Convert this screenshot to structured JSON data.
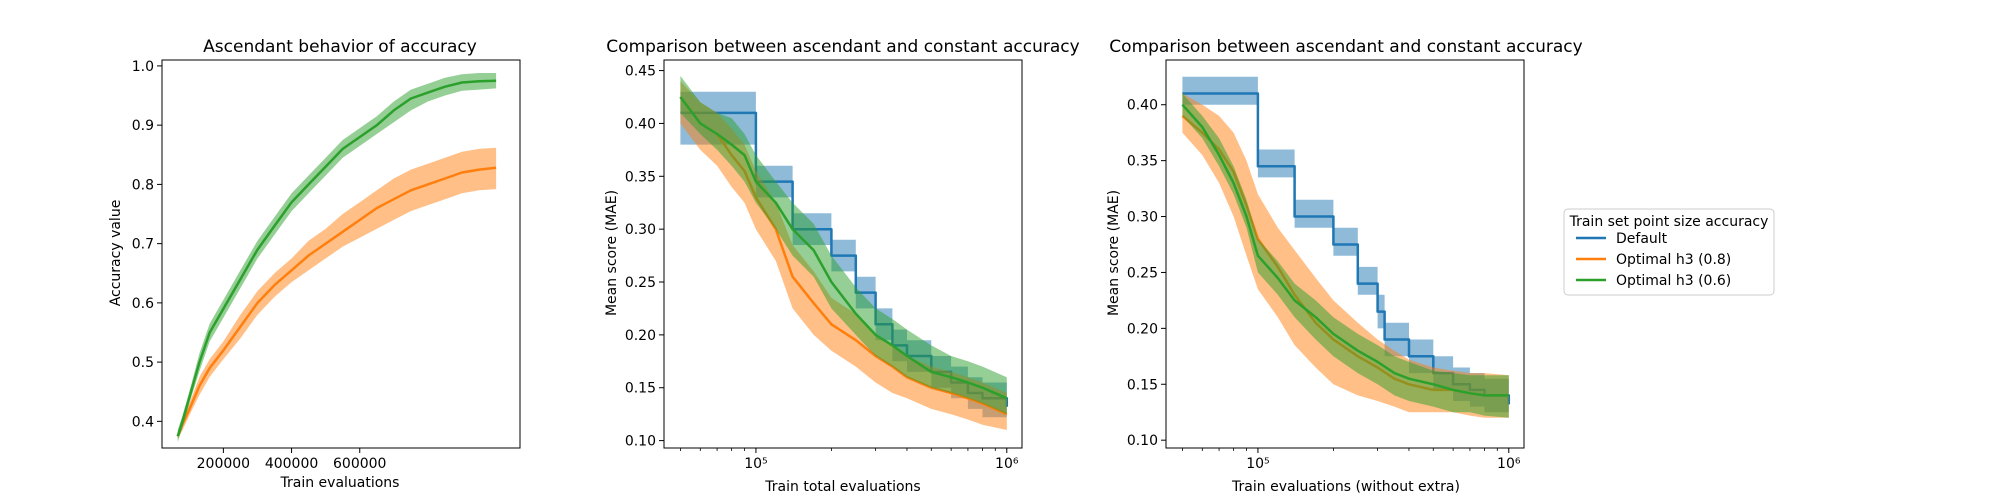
{
  "colors": {
    "Default": "#1f77b4",
    "Optimal h3 (0.8)": "#ff7f0e",
    "Optimal h3 (0.6)": "#2ca02c"
  },
  "legend": {
    "title": "Train set point size accuracy",
    "entries": [
      {
        "name": "Default",
        "color": "#1f77b4"
      },
      {
        "name": "Optimal h3 (0.8)",
        "color": "#ff7f0e"
      },
      {
        "name": "Optimal h3 (0.6)",
        "color": "#2ca02c"
      }
    ]
  },
  "chart_data": [
    {
      "type": "line",
      "title": "Ascendant behavior of accuracy",
      "xlabel": "Train evaluations",
      "ylabel": "Accuracy value",
      "xlim": [
        20000,
        1070000
      ],
      "ylim": [
        0.355,
        1.01
      ],
      "xscale": "linear",
      "xticks": [
        200000,
        400000,
        600000
      ],
      "xtick_labels": [
        "200000",
        "400000",
        "600000"
      ],
      "yticks": [
        0.4,
        0.5,
        0.6,
        0.7,
        0.8,
        0.9,
        1.0
      ],
      "ytick_labels": [
        "0.4",
        "0.5",
        "0.6",
        "0.7",
        "0.8",
        "0.9",
        "1.0"
      ],
      "grid": false,
      "series": [
        {
          "name": "Optimal h3 (0.8)",
          "x": [
            66000,
            80000,
            100000,
            130000,
            160000,
            200000,
            250000,
            300000,
            350000,
            400000,
            450000,
            500000,
            550000,
            600000,
            650000,
            700000,
            750000,
            800000,
            850000,
            900000,
            950000,
            1000000
          ],
          "y": [
            0.375,
            0.395,
            0.42,
            0.46,
            0.49,
            0.52,
            0.56,
            0.6,
            0.63,
            0.655,
            0.68,
            0.7,
            0.72,
            0.74,
            0.76,
            0.775,
            0.79,
            0.8,
            0.81,
            0.82,
            0.825,
            0.828
          ],
          "lower": [
            0.37,
            0.385,
            0.41,
            0.445,
            0.475,
            0.505,
            0.54,
            0.58,
            0.61,
            0.635,
            0.655,
            0.675,
            0.695,
            0.71,
            0.725,
            0.74,
            0.755,
            0.765,
            0.775,
            0.785,
            0.79,
            0.792
          ],
          "upper": [
            0.38,
            0.405,
            0.43,
            0.475,
            0.505,
            0.535,
            0.58,
            0.62,
            0.65,
            0.675,
            0.705,
            0.725,
            0.75,
            0.77,
            0.79,
            0.81,
            0.825,
            0.835,
            0.845,
            0.855,
            0.86,
            0.862
          ]
        },
        {
          "name": "Optimal h3 (0.6)",
          "x": [
            66000,
            80000,
            100000,
            130000,
            160000,
            200000,
            250000,
            300000,
            350000,
            400000,
            450000,
            500000,
            550000,
            600000,
            650000,
            700000,
            750000,
            800000,
            850000,
            900000,
            950000,
            1000000
          ],
          "y": [
            0.375,
            0.4,
            0.44,
            0.5,
            0.55,
            0.59,
            0.64,
            0.69,
            0.73,
            0.77,
            0.8,
            0.83,
            0.86,
            0.88,
            0.9,
            0.925,
            0.945,
            0.955,
            0.965,
            0.972,
            0.974,
            0.975
          ],
          "lower": [
            0.365,
            0.39,
            0.43,
            0.485,
            0.535,
            0.575,
            0.625,
            0.675,
            0.715,
            0.755,
            0.785,
            0.815,
            0.845,
            0.865,
            0.885,
            0.905,
            0.925,
            0.94,
            0.95,
            0.958,
            0.96,
            0.962
          ],
          "upper": [
            0.385,
            0.41,
            0.45,
            0.515,
            0.565,
            0.605,
            0.655,
            0.705,
            0.745,
            0.785,
            0.815,
            0.845,
            0.875,
            0.895,
            0.915,
            0.94,
            0.96,
            0.97,
            0.98,
            0.986,
            0.988,
            0.988
          ]
        }
      ]
    },
    {
      "type": "line",
      "title": "Comparison between ascendant and constant accuracy",
      "xlabel": "Train total evaluations",
      "ylabel": "Mean score (MAE)",
      "xlim": [
        43000,
        1150000
      ],
      "ylim": [
        0.093,
        0.46
      ],
      "xscale": "log",
      "xticks": [
        100000,
        1000000
      ],
      "xtick_labels": [
        "10⁵",
        "10⁶"
      ],
      "yticks": [
        0.1,
        0.15,
        0.2,
        0.25,
        0.3,
        0.35,
        0.4,
        0.45
      ],
      "ytick_labels": [
        "0.10",
        "0.15",
        "0.20",
        "0.25",
        "0.30",
        "0.35",
        "0.40",
        "0.45"
      ],
      "grid": false,
      "series": [
        {
          "name": "Default",
          "x": [
            50000,
            70000,
            90000,
            100000,
            120000,
            140000,
            170000,
            200000,
            250000,
            300000,
            350000,
            400000,
            500000,
            600000,
            700000,
            800000,
            1000000
          ],
          "y": [
            0.41,
            0.41,
            0.41,
            0.345,
            0.345,
            0.3,
            0.3,
            0.275,
            0.24,
            0.21,
            0.19,
            0.18,
            0.165,
            0.155,
            0.145,
            0.14,
            0.132
          ],
          "lower": [
            0.38,
            0.38,
            0.38,
            0.33,
            0.33,
            0.285,
            0.285,
            0.26,
            0.225,
            0.195,
            0.175,
            0.165,
            0.15,
            0.14,
            0.13,
            0.122,
            0.115
          ],
          "upper": [
            0.43,
            0.43,
            0.43,
            0.36,
            0.36,
            0.315,
            0.315,
            0.29,
            0.255,
            0.225,
            0.205,
            0.195,
            0.18,
            0.17,
            0.16,
            0.155,
            0.15
          ]
        },
        {
          "name": "Optimal h3 (0.8)",
          "x": [
            50000,
            60000,
            70000,
            80000,
            90000,
            100000,
            120000,
            140000,
            170000,
            200000,
            250000,
            300000,
            350000,
            400000,
            500000,
            600000,
            700000,
            800000,
            1000000
          ],
          "y": [
            0.425,
            0.4,
            0.39,
            0.37,
            0.355,
            0.33,
            0.3,
            0.255,
            0.23,
            0.21,
            0.195,
            0.18,
            0.17,
            0.16,
            0.15,
            0.145,
            0.14,
            0.135,
            0.125
          ],
          "lower": [
            0.4,
            0.375,
            0.36,
            0.34,
            0.325,
            0.3,
            0.27,
            0.225,
            0.2,
            0.185,
            0.17,
            0.155,
            0.145,
            0.14,
            0.13,
            0.125,
            0.12,
            0.115,
            0.11
          ],
          "upper": [
            0.44,
            0.42,
            0.41,
            0.395,
            0.38,
            0.355,
            0.325,
            0.285,
            0.26,
            0.235,
            0.22,
            0.2,
            0.19,
            0.18,
            0.17,
            0.165,
            0.16,
            0.155,
            0.145
          ]
        },
        {
          "name": "Optimal h3 (0.6)",
          "x": [
            50000,
            60000,
            70000,
            80000,
            90000,
            100000,
            120000,
            140000,
            170000,
            200000,
            250000,
            300000,
            350000,
            400000,
            500000,
            600000,
            700000,
            800000,
            1000000
          ],
          "y": [
            0.425,
            0.4,
            0.39,
            0.38,
            0.37,
            0.345,
            0.325,
            0.3,
            0.28,
            0.25,
            0.22,
            0.2,
            0.19,
            0.18,
            0.165,
            0.16,
            0.155,
            0.15,
            0.14
          ],
          "lower": [
            0.41,
            0.39,
            0.375,
            0.36,
            0.345,
            0.325,
            0.3,
            0.275,
            0.255,
            0.225,
            0.2,
            0.18,
            0.17,
            0.16,
            0.15,
            0.145,
            0.14,
            0.135,
            0.125
          ],
          "upper": [
            0.445,
            0.42,
            0.41,
            0.405,
            0.39,
            0.37,
            0.345,
            0.325,
            0.305,
            0.275,
            0.245,
            0.225,
            0.215,
            0.205,
            0.19,
            0.18,
            0.175,
            0.17,
            0.16
          ]
        }
      ]
    },
    {
      "type": "line",
      "title": "Comparison between ascendant and constant accuracy",
      "xlabel": "Train evaluations (without extra)",
      "ylabel": "Mean score (MAE)",
      "xlim": [
        43000,
        1150000
      ],
      "ylim": [
        0.093,
        0.44
      ],
      "xscale": "log",
      "xticks": [
        100000,
        1000000
      ],
      "xtick_labels": [
        "10⁵",
        "10⁶"
      ],
      "yticks": [
        0.1,
        0.15,
        0.2,
        0.25,
        0.3,
        0.35,
        0.4
      ],
      "ytick_labels": [
        "0.10",
        "0.15",
        "0.20",
        "0.25",
        "0.30",
        "0.35",
        "0.40"
      ],
      "grid": false,
      "series": [
        {
          "name": "Default",
          "x": [
            50000,
            70000,
            90000,
            100000,
            130000,
            140000,
            180000,
            200000,
            250000,
            300000,
            320000,
            400000,
            500000,
            600000,
            700000,
            800000,
            1000000
          ],
          "y": [
            0.41,
            0.41,
            0.41,
            0.345,
            0.345,
            0.3,
            0.3,
            0.275,
            0.24,
            0.215,
            0.19,
            0.175,
            0.16,
            0.15,
            0.145,
            0.14,
            0.132
          ],
          "lower": [
            0.4,
            0.4,
            0.4,
            0.335,
            0.335,
            0.29,
            0.29,
            0.265,
            0.23,
            0.2,
            0.175,
            0.16,
            0.145,
            0.135,
            0.13,
            0.125,
            0.115
          ],
          "upper": [
            0.425,
            0.425,
            0.425,
            0.36,
            0.36,
            0.315,
            0.315,
            0.29,
            0.255,
            0.23,
            0.205,
            0.19,
            0.175,
            0.165,
            0.16,
            0.155,
            0.15
          ]
        },
        {
          "name": "Optimal h3 (0.8)",
          "x": [
            50000,
            60000,
            70000,
            80000,
            90000,
            100000,
            120000,
            140000,
            170000,
            200000,
            250000,
            300000,
            350000,
            400000,
            500000,
            600000,
            700000,
            800000,
            1000000
          ],
          "y": [
            0.39,
            0.375,
            0.36,
            0.34,
            0.31,
            0.28,
            0.255,
            0.23,
            0.205,
            0.19,
            0.175,
            0.165,
            0.155,
            0.15,
            0.145,
            0.145,
            0.142,
            0.14,
            0.14
          ],
          "lower": [
            0.375,
            0.355,
            0.33,
            0.3,
            0.265,
            0.235,
            0.21,
            0.185,
            0.165,
            0.15,
            0.14,
            0.135,
            0.13,
            0.125,
            0.125,
            0.125,
            0.122,
            0.12,
            0.12
          ],
          "upper": [
            0.41,
            0.4,
            0.39,
            0.375,
            0.35,
            0.32,
            0.29,
            0.27,
            0.245,
            0.225,
            0.205,
            0.19,
            0.18,
            0.172,
            0.165,
            0.162,
            0.16,
            0.16,
            0.158
          ]
        },
        {
          "name": "Optimal h3 (0.6)",
          "x": [
            50000,
            60000,
            70000,
            80000,
            90000,
            100000,
            120000,
            140000,
            170000,
            200000,
            250000,
            300000,
            350000,
            400000,
            500000,
            600000,
            700000,
            800000,
            1000000
          ],
          "y": [
            0.4,
            0.38,
            0.355,
            0.33,
            0.3,
            0.265,
            0.245,
            0.225,
            0.21,
            0.195,
            0.18,
            0.17,
            0.16,
            0.155,
            0.15,
            0.145,
            0.142,
            0.14,
            0.14
          ],
          "lower": [
            0.39,
            0.37,
            0.345,
            0.32,
            0.29,
            0.25,
            0.23,
            0.21,
            0.19,
            0.175,
            0.16,
            0.15,
            0.14,
            0.135,
            0.13,
            0.125,
            0.125,
            0.122,
            0.12
          ],
          "upper": [
            0.41,
            0.39,
            0.37,
            0.345,
            0.315,
            0.28,
            0.26,
            0.24,
            0.225,
            0.21,
            0.195,
            0.185,
            0.175,
            0.17,
            0.162,
            0.16,
            0.158,
            0.158,
            0.158
          ]
        }
      ]
    }
  ]
}
